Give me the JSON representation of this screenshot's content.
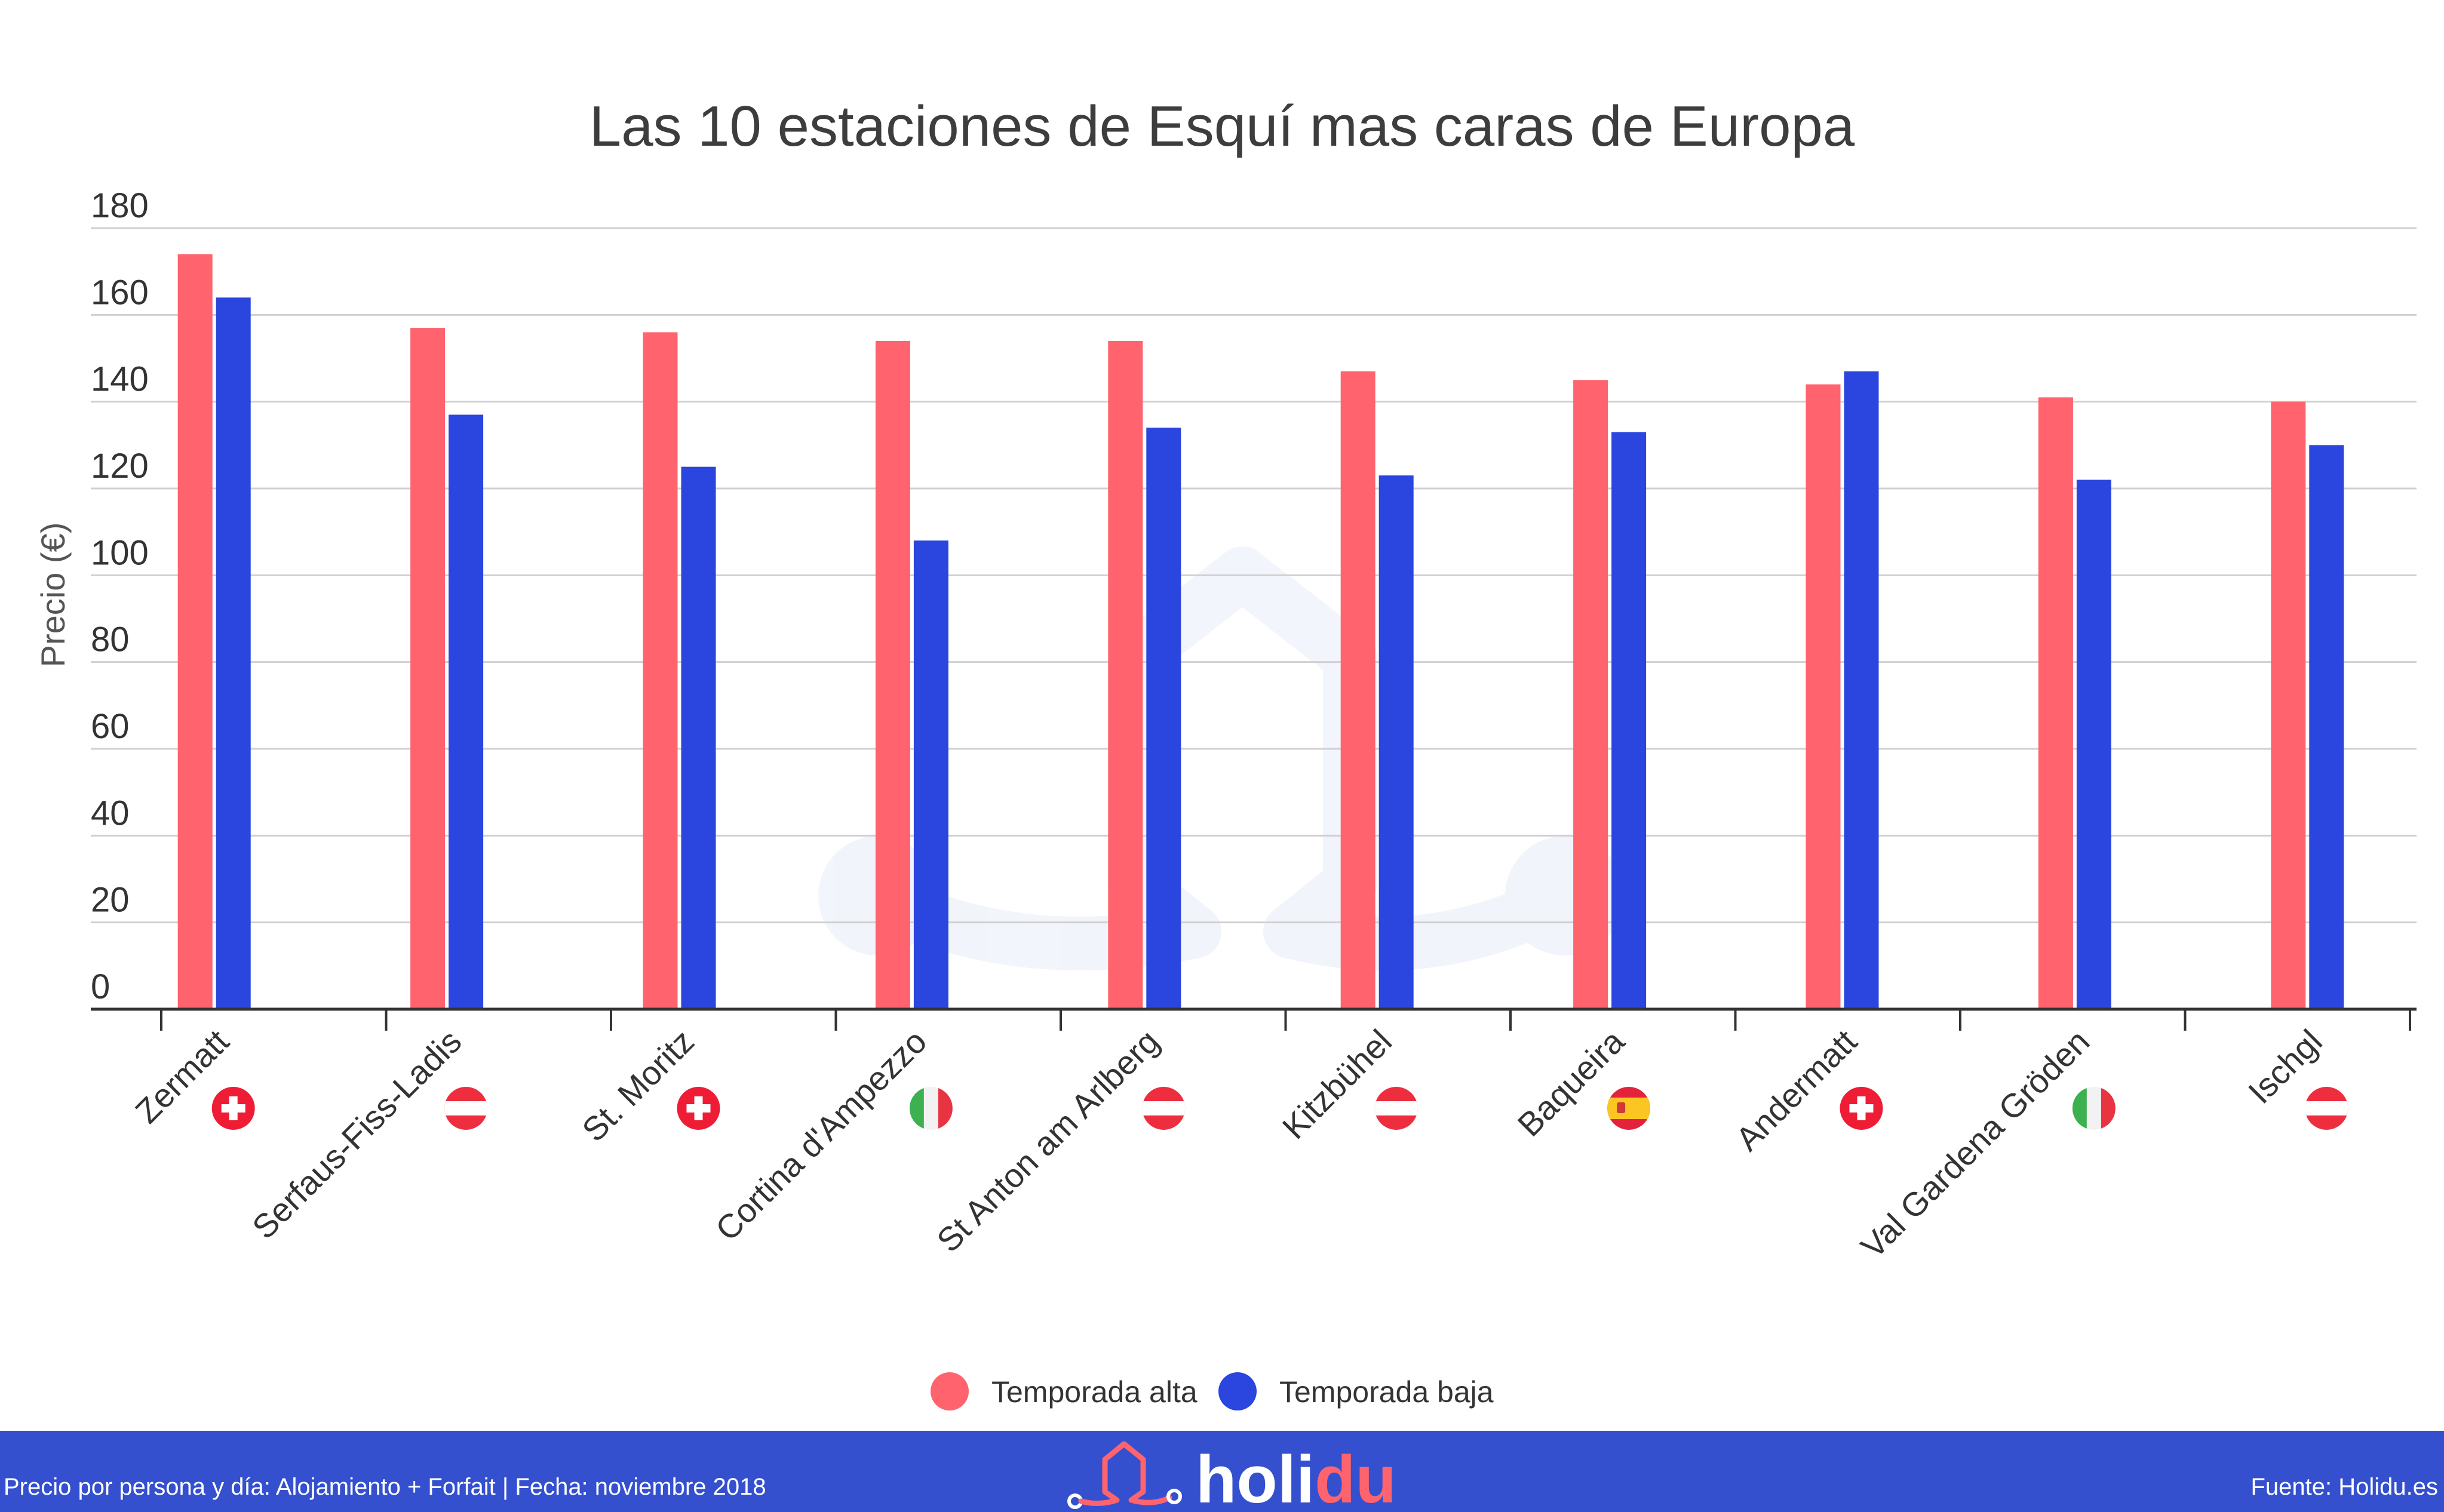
{
  "chart_data": {
    "type": "bar",
    "title": "Las 10 estaciones de Esquí mas caras de Europa",
    "ylabel": "Precio (€)",
    "xlabel": "",
    "ylim": [
      0,
      180
    ],
    "yticks": [
      0,
      20,
      40,
      60,
      80,
      100,
      120,
      140,
      160,
      180
    ],
    "grid": true,
    "legend_position": "bottom-center",
    "categories": [
      "Zermatt",
      "Serfaus-Fiss-Ladis",
      "St. Moritz",
      "Cortina d'Ampezzo",
      "St Anton am Arlberg",
      "Kitzbühel",
      "Baqueira",
      "Andermatt",
      "Val Gardena Gröden",
      "Ischgl"
    ],
    "category_flags": [
      "switzerland-flag-icon",
      "austria-flag-icon",
      "switzerland-flag-icon",
      "italy-flag-icon",
      "austria-flag-icon",
      "austria-flag-icon",
      "spain-flag-icon",
      "switzerland-flag-icon",
      "italy-flag-icon",
      "austria-flag-icon"
    ],
    "series": [
      {
        "name": "Temporada alta",
        "color": "#ff646e",
        "values": [
          174,
          157,
          156,
          154,
          154,
          147,
          145,
          144,
          141,
          140
        ]
      },
      {
        "name": "Temporada baja",
        "color": "#2b45df",
        "values": [
          164,
          137,
          125,
          108,
          134,
          123,
          133,
          147,
          122,
          130
        ]
      }
    ]
  },
  "footer": {
    "left_text": "Precio por persona y día: Alojamiento + Forfait | Fecha: noviembre 2018",
    "logo_text_a": "holi",
    "logo_text_b": "du",
    "right_text": "Fuente: Holidu.es",
    "background_color": "#3450cf",
    "logo_accent_color": "#ff646e"
  }
}
